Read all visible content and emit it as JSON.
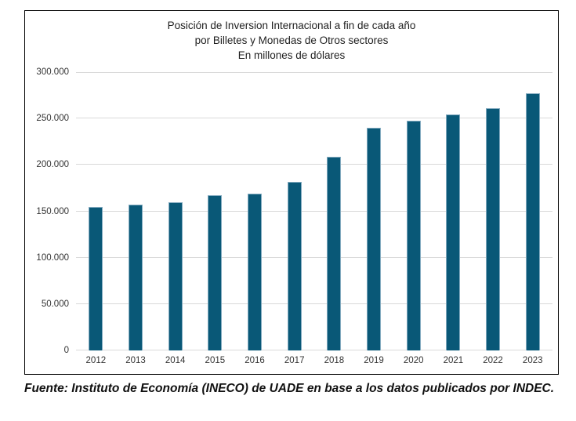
{
  "chart": {
    "title_line1": "Posición de Inversion Internacional a fin de cada año",
    "title_line2": "por Billetes y Monedas de Otros sectores",
    "title_line3": "En millones de dólares",
    "source": "Fuente: Instituto de Economía (INECO) de UADE en base a los datos publicados por INDEC."
  },
  "chart_data": {
    "type": "bar",
    "title": "Posición de Inversion Internacional a fin de cada año por Billetes y Monedas de Otros sectores",
    "subtitle": "En millones de dólares",
    "categories": [
      "2012",
      "2013",
      "2014",
      "2015",
      "2016",
      "2017",
      "2018",
      "2019",
      "2020",
      "2021",
      "2022",
      "2023"
    ],
    "values": [
      154500,
      157500,
      159500,
      167500,
      169000,
      182000,
      208500,
      240000,
      248000,
      254000,
      261500,
      277500
    ],
    "xlabel": "",
    "ylabel": "",
    "ylim": [
      0,
      300000
    ],
    "ytick_step": 50000,
    "ytick_labels": [
      "0",
      "50.000",
      "100.000",
      "150.000",
      "200.000",
      "250.000",
      "300.000"
    ],
    "grid": true,
    "legend": false,
    "bar_color": "#095877",
    "bar_edge_color": "#82aabf",
    "gridline_color": "#d9d9d9",
    "source": "Fuente: Instituto de Economía (INECO) de UADE en base a los datos publicados por INDEC."
  }
}
